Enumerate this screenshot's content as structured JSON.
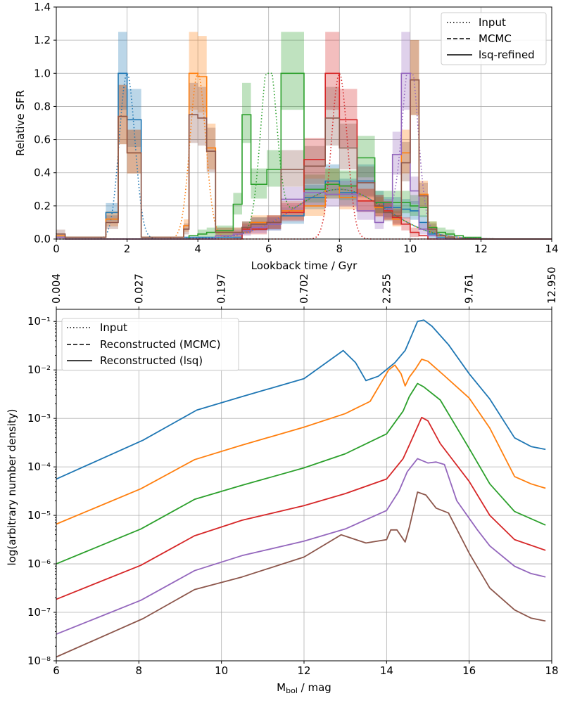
{
  "chart_data": [
    {
      "type": "line",
      "ylabel": "Relative SFR",
      "xlabel": "Lookback time / Gyr",
      "xlim": [
        0,
        14
      ],
      "ylim": [
        0,
        1.4
      ],
      "xticks": [
        "0",
        "2",
        "4",
        "6",
        "8",
        "10",
        "12",
        "14"
      ],
      "yticks": [
        "0.0",
        "0.2",
        "0.4",
        "0.6",
        "0.8",
        "1.0",
        "1.2",
        "1.4"
      ],
      "grid": true,
      "legend_position": "upper-right",
      "legend": [
        "Input",
        "MCMC",
        "lsq-refined"
      ],
      "series_colors": [
        "#1f77b4",
        "#ff7f0e",
        "#2ca02c",
        "#d62728",
        "#9467bd",
        "#8c564b"
      ],
      "peak_centers": [
        2,
        4,
        6,
        8,
        10
      ],
      "bins": [
        0,
        0.25,
        0.5,
        0.75,
        1.0,
        1.25,
        1.4,
        1.75,
        2.0,
        2.4,
        3.6,
        3.75,
        4.0,
        4.25,
        4.5,
        5.0,
        5.25,
        5.5,
        5.95,
        6.35,
        7.0,
        7.6,
        8.0,
        8.5,
        9.0,
        9.25,
        9.5,
        9.75,
        10.0,
        10.25,
        10.5,
        10.75,
        11.0,
        11.25,
        11.5,
        12.0,
        14.0
      ],
      "lsq_steps": [
        [
          0.02,
          0.01,
          0.01,
          0.01,
          0.01,
          0.01,
          0.16,
          1.0,
          0.72,
          0.01,
          0.01,
          0.01,
          0.01,
          0.01,
          0.01,
          0.01,
          0.07,
          0.09,
          0.09,
          0.14,
          0.25,
          0.35,
          0.28,
          0.35,
          0.22,
          0.19,
          0.19,
          0.18,
          0.17,
          0.1,
          0.03,
          0.01,
          0.0,
          0.0,
          0.0,
          0.0
        ],
        [
          0.02,
          0.01,
          0.01,
          0.01,
          0.01,
          0.01,
          0.12,
          0.74,
          0.52,
          0.01,
          0.08,
          1.0,
          0.98,
          0.55,
          0.04,
          0.04,
          0.07,
          0.1,
          0.1,
          0.17,
          0.2,
          0.33,
          0.25,
          0.23,
          0.19,
          0.17,
          0.12,
          0.52,
          0.96,
          0.27,
          0.07,
          0.02,
          0.01,
          0.0,
          0.0,
          0.0
        ],
        [
          0.01,
          0.0,
          0.0,
          0.0,
          0.0,
          0.0,
          0.0,
          0.0,
          0.0,
          0.0,
          0.0,
          0.02,
          0.03,
          0.04,
          0.05,
          0.21,
          0.75,
          0.33,
          0.42,
          1.0,
          0.3,
          0.33,
          0.32,
          0.49,
          0.22,
          0.22,
          0.22,
          0.22,
          0.2,
          0.19,
          0.07,
          0.04,
          0.03,
          0.02,
          0.01,
          0.0
        ],
        [
          0.01,
          0.0,
          0.0,
          0.0,
          0.0,
          0.0,
          0.0,
          0.0,
          0.0,
          0.0,
          0.0,
          0.0,
          0.0,
          0.0,
          0.0,
          0.0,
          0.06,
          0.06,
          0.1,
          0.16,
          0.48,
          1.0,
          0.72,
          0.23,
          0.2,
          0.17,
          0.13,
          0.09,
          0.04,
          0.02,
          0.0,
          0.0,
          0.0,
          0.0,
          0.0,
          0.0
        ],
        [
          0.01,
          0.0,
          0.0,
          0.0,
          0.0,
          0.0,
          0.0,
          0.0,
          0.0,
          0.0,
          0.0,
          0.0,
          0.0,
          0.0,
          0.02,
          0.03,
          0.05,
          0.07,
          0.09,
          0.24,
          0.28,
          0.27,
          0.27,
          0.17,
          0.1,
          0.18,
          0.51,
          1.0,
          0.29,
          0.06,
          0.02,
          0.0,
          0.0,
          0.0,
          0.0,
          0.0
        ],
        [
          0.03,
          0.01,
          0.01,
          0.01,
          0.01,
          0.01,
          0.1,
          0.74,
          0.52,
          0.01,
          0.06,
          0.75,
          0.73,
          0.53,
          0.04,
          0.04,
          0.07,
          0.09,
          0.1,
          0.42,
          0.44,
          0.73,
          0.55,
          0.34,
          0.2,
          0.16,
          0.14,
          0.46,
          0.96,
          0.26,
          0.06,
          0.02,
          0.01,
          0.0,
          0.0,
          0.0
        ]
      ]
    },
    {
      "type": "line",
      "ylabel": "log(arbitrary number density)",
      "xlabel": "M_bol / mag",
      "xlabel_main": "M",
      "xlabel_sub": "bol",
      "xlabel_suffix": " / mag",
      "xlim": [
        6,
        18
      ],
      "ylim_log10": [
        -8,
        -0.75
      ],
      "yscale": "log",
      "xticks": [
        "6",
        "8",
        "10",
        "12",
        "14",
        "16",
        "18"
      ],
      "yticks": [
        "10⁻⁸",
        "10⁻⁷",
        "10⁻⁶",
        "10⁻⁵",
        "10⁻⁴",
        "10⁻³",
        "10⁻²",
        "10⁻¹"
      ],
      "top_axis_ticks": [
        "0.004",
        "0.027",
        "0.197",
        "0.702",
        "2.255",
        "9.761",
        "12.950"
      ],
      "grid": true,
      "legend_position": "upper-left",
      "legend": [
        "Input",
        "Reconstructed (MCMC)",
        "Reconstructed (lsq)"
      ],
      "series_colors": [
        "#1f77b4",
        "#ff7f0e",
        "#2ca02c",
        "#d62728",
        "#9467bd",
        "#8c564b"
      ],
      "series_log10": [
        [
          [
            6,
            -4.25
          ],
          [
            8.1,
            -3.45
          ],
          [
            9.4,
            -2.83
          ],
          [
            10.5,
            -2.55
          ],
          [
            12,
            -2.18
          ],
          [
            12.95,
            -1.6
          ],
          [
            13.25,
            -1.85
          ],
          [
            13.5,
            -2.22
          ],
          [
            13.8,
            -2.13
          ],
          [
            14.2,
            -1.85
          ],
          [
            14.45,
            -1.6
          ],
          [
            14.55,
            -1.4
          ],
          [
            14.75,
            -1.0
          ],
          [
            14.9,
            -0.97
          ],
          [
            15.1,
            -1.1
          ],
          [
            15.5,
            -1.48
          ],
          [
            16.0,
            -2.08
          ],
          [
            16.5,
            -2.6
          ],
          [
            17.1,
            -3.4
          ],
          [
            17.5,
            -3.58
          ],
          [
            17.85,
            -3.64
          ]
        ],
        [
          [
            6,
            -5.18
          ],
          [
            8.05,
            -4.45
          ],
          [
            9.35,
            -3.85
          ],
          [
            10.5,
            -3.55
          ],
          [
            12,
            -3.18
          ],
          [
            13.0,
            -2.9
          ],
          [
            13.6,
            -2.65
          ],
          [
            14.05,
            -2.0
          ],
          [
            14.2,
            -1.9
          ],
          [
            14.35,
            -2.08
          ],
          [
            14.45,
            -2.33
          ],
          [
            14.55,
            -2.15
          ],
          [
            14.7,
            -1.98
          ],
          [
            14.85,
            -1.78
          ],
          [
            15.0,
            -1.82
          ],
          [
            15.4,
            -2.12
          ],
          [
            16.0,
            -2.58
          ],
          [
            16.5,
            -3.2
          ],
          [
            17.1,
            -4.2
          ],
          [
            17.5,
            -4.35
          ],
          [
            17.85,
            -4.44
          ]
        ],
        [
          [
            6,
            -6.0
          ],
          [
            8.05,
            -5.28
          ],
          [
            9.35,
            -4.67
          ],
          [
            10.5,
            -4.38
          ],
          [
            12,
            -4.02
          ],
          [
            13.0,
            -3.73
          ],
          [
            14.0,
            -3.32
          ],
          [
            14.4,
            -2.85
          ],
          [
            14.55,
            -2.55
          ],
          [
            14.75,
            -2.28
          ],
          [
            14.9,
            -2.35
          ],
          [
            15.3,
            -2.62
          ],
          [
            16.0,
            -3.62
          ],
          [
            16.5,
            -4.35
          ],
          [
            17.1,
            -4.92
          ],
          [
            17.85,
            -5.2
          ]
        ],
        [
          [
            6,
            -6.73
          ],
          [
            8.05,
            -6.03
          ],
          [
            9.35,
            -5.42
          ],
          [
            10.5,
            -5.1
          ],
          [
            12,
            -4.8
          ],
          [
            13.0,
            -4.55
          ],
          [
            14.0,
            -4.25
          ],
          [
            14.4,
            -3.83
          ],
          [
            14.55,
            -3.55
          ],
          [
            14.85,
            -2.98
          ],
          [
            15.0,
            -3.05
          ],
          [
            15.3,
            -3.52
          ],
          [
            16.0,
            -4.3
          ],
          [
            16.5,
            -5.0
          ],
          [
            17.1,
            -5.5
          ],
          [
            17.85,
            -5.72
          ]
        ],
        [
          [
            6,
            -7.45
          ],
          [
            8.05,
            -6.75
          ],
          [
            9.35,
            -6.14
          ],
          [
            10.5,
            -5.83
          ],
          [
            12,
            -5.53
          ],
          [
            13.0,
            -5.28
          ],
          [
            14.0,
            -4.9
          ],
          [
            14.3,
            -4.5
          ],
          [
            14.5,
            -4.1
          ],
          [
            14.75,
            -3.83
          ],
          [
            15.0,
            -3.92
          ],
          [
            15.2,
            -3.9
          ],
          [
            15.4,
            -3.95
          ],
          [
            15.7,
            -4.7
          ],
          [
            16.2,
            -5.3
          ],
          [
            16.5,
            -5.63
          ],
          [
            17.1,
            -6.05
          ],
          [
            17.5,
            -6.2
          ],
          [
            17.85,
            -6.27
          ]
        ],
        [
          [
            6,
            -7.92
          ],
          [
            8.1,
            -7.13
          ],
          [
            9.35,
            -6.53
          ],
          [
            10.5,
            -6.27
          ],
          [
            12,
            -5.86
          ],
          [
            12.9,
            -5.4
          ],
          [
            13.5,
            -5.57
          ],
          [
            14.0,
            -5.5
          ],
          [
            14.1,
            -5.3
          ],
          [
            14.25,
            -5.3
          ],
          [
            14.45,
            -5.55
          ],
          [
            14.55,
            -5.25
          ],
          [
            14.75,
            -4.52
          ],
          [
            14.95,
            -4.58
          ],
          [
            15.2,
            -4.85
          ],
          [
            15.5,
            -4.95
          ],
          [
            16.0,
            -5.78
          ],
          [
            16.5,
            -6.5
          ],
          [
            17.1,
            -6.95
          ],
          [
            17.5,
            -7.12
          ],
          [
            17.85,
            -7.18
          ]
        ]
      ]
    }
  ]
}
